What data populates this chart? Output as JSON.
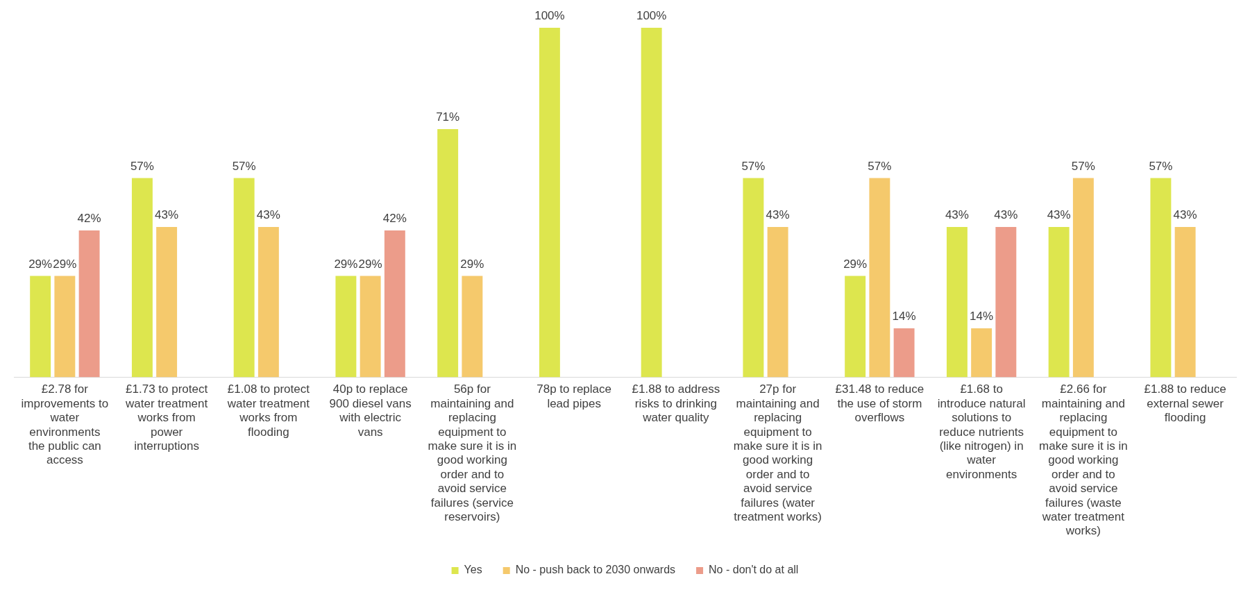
{
  "chart_data": {
    "type": "bar",
    "categories": [
      "£2.78 for improvements to water environments the public can access",
      "£1.73 to protect water treatment works from power interruptions",
      "£1.08 to protect water treatment works from flooding",
      "40p to replace 900 diesel vans with electric vans",
      "56p for maintaining and replacing equipment to make sure it is in good working order and to avoid service failures (service reservoirs)",
      "78p to replace lead pipes",
      "£1.88 to address risks to drinking water quality",
      "27p for maintaining and replacing equipment to make sure it is in good working order and to avoid service failures (water treatment works)",
      "£31.48 to reduce the use of storm overflows",
      "£1.68 to introduce natural solutions to reduce nutrients (like nitrogen) in water environments",
      "£2.66 for maintaining and replacing equipment to make sure it is in good working order and to avoid service failures (waste water treatment works)",
      "£1.88 to reduce external sewer flooding"
    ],
    "series": [
      {
        "name": "Yes",
        "color": "#dde64e",
        "values": [
          29,
          57,
          57,
          29,
          71,
          100,
          100,
          57,
          29,
          43,
          43,
          57
        ],
        "value_labels": [
          "29%",
          "57%",
          "57%",
          "29%",
          "71%",
          "100%",
          "100%",
          "57%",
          "29%",
          "43%",
          "43%",
          "57%"
        ]
      },
      {
        "name": "No - push back to 2030 onwards",
        "color": "#f5c96c",
        "values": [
          29,
          43,
          43,
          29,
          29,
          null,
          null,
          43,
          57,
          14,
          57,
          43
        ],
        "value_labels": [
          "29%",
          "43%",
          "43%",
          "29%",
          "29%",
          null,
          null,
          "43%",
          "57%",
          "14%",
          "57%",
          "43%"
        ]
      },
      {
        "name": "No - don't do at all",
        "color": "#ec9c8a",
        "values": [
          42,
          null,
          null,
          42,
          null,
          null,
          null,
          null,
          14,
          43,
          null,
          null
        ],
        "value_labels": [
          "42%",
          null,
          null,
          "42%",
          null,
          null,
          null,
          null,
          "14%",
          "43%",
          null,
          null
        ]
      }
    ],
    "legend": "bottom",
    "grid": false,
    "tick_labels": "x"
  }
}
